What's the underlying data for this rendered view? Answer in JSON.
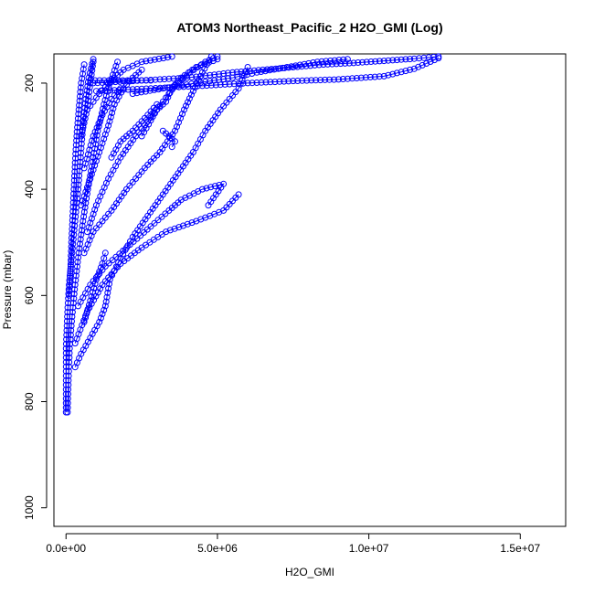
{
  "chart_data": {
    "type": "scatter",
    "title": "ATOM3 Northeast_Pacific_2 H2O_GMI (Log)",
    "xlabel": "H2O_GMI",
    "ylabel": "Pressure (mbar)",
    "xlim": [
      -400000,
      16500000
    ],
    "ylim": [
      1035,
      145
    ],
    "y_reversed": true,
    "xticks": [
      {
        "value": 0,
        "label": "0.0e+00"
      },
      {
        "value": 5000000,
        "label": "5.0e+06"
      },
      {
        "value": 10000000,
        "label": "1.0e+07"
      },
      {
        "value": 15000000,
        "label": "1.5e+07"
      }
    ],
    "yticks": [
      {
        "value": 200,
        "label": "200"
      },
      {
        "value": 400,
        "label": "400"
      },
      {
        "value": 600,
        "label": "600"
      },
      {
        "value": 800,
        "label": "800"
      },
      {
        "value": 1000,
        "label": "1000"
      }
    ],
    "colors": {
      "series": "#0000ff",
      "axis": "#000000"
    },
    "marker": "open-circle",
    "connected": true,
    "series": [
      {
        "values": [
          [
            0,
            820
          ],
          [
            0,
            760
          ],
          [
            0,
            700
          ],
          [
            40000,
            640
          ],
          [
            100000,
            580
          ],
          [
            200000,
            520
          ],
          [
            300000,
            460
          ],
          [
            400000,
            400
          ],
          [
            480000,
            340
          ],
          [
            560000,
            280
          ],
          [
            650000,
            230
          ],
          [
            750000,
            190
          ],
          [
            900000,
            155
          ]
        ]
      },
      {
        "values": [
          [
            50000,
            820
          ],
          [
            80000,
            760
          ],
          [
            120000,
            700
          ],
          [
            200000,
            640
          ],
          [
            300000,
            580
          ],
          [
            420000,
            520
          ],
          [
            560000,
            460
          ],
          [
            720000,
            400
          ],
          [
            900000,
            340
          ],
          [
            1050000,
            290
          ],
          [
            1250000,
            240
          ],
          [
            1450000,
            200
          ],
          [
            1700000,
            160
          ]
        ]
      },
      {
        "values": [
          [
            300000,
            735
          ],
          [
            500000,
            710
          ],
          [
            800000,
            680
          ],
          [
            1100000,
            650
          ],
          [
            1300000,
            620
          ],
          [
            1450000,
            570
          ],
          [
            1800000,
            530
          ],
          [
            2200000,
            490
          ],
          [
            2700000,
            450
          ],
          [
            3200000,
            410
          ],
          [
            3700000,
            370
          ],
          [
            4200000,
            330
          ],
          [
            4600000,
            290
          ],
          [
            5100000,
            250
          ],
          [
            5700000,
            210
          ],
          [
            6000000,
            170
          ]
        ]
      },
      {
        "values": [
          [
            300000,
            690
          ],
          [
            700000,
            630
          ],
          [
            1200000,
            580
          ],
          [
            1800000,
            540
          ],
          [
            2500000,
            510
          ],
          [
            3300000,
            480
          ],
          [
            4300000,
            460
          ],
          [
            5200000,
            440
          ],
          [
            5700000,
            410
          ]
        ]
      },
      {
        "values": [
          [
            400000,
            620
          ],
          [
            800000,
            580
          ],
          [
            1300000,
            545
          ],
          [
            2000000,
            510
          ],
          [
            2800000,
            470
          ],
          [
            3400000,
            440
          ],
          [
            3800000,
            420
          ],
          [
            4500000,
            400
          ],
          [
            5200000,
            390
          ],
          [
            4700000,
            430
          ]
        ]
      },
      {
        "values": [
          [
            600000,
            520
          ],
          [
            900000,
            480
          ],
          [
            1500000,
            440
          ],
          [
            2000000,
            400
          ],
          [
            2600000,
            360
          ],
          [
            3100000,
            330
          ],
          [
            3600000,
            290
          ],
          [
            3900000,
            250
          ],
          [
            4200000,
            215
          ],
          [
            4500000,
            180
          ],
          [
            4800000,
            150
          ]
        ]
      },
      {
        "values": [
          [
            700000,
            480
          ],
          [
            1000000,
            430
          ],
          [
            1400000,
            380
          ],
          [
            1800000,
            340
          ],
          [
            2300000,
            300
          ],
          [
            2800000,
            265
          ],
          [
            3200000,
            235
          ],
          [
            3600000,
            205
          ],
          [
            4100000,
            180
          ],
          [
            4600000,
            160
          ],
          [
            5000000,
            150
          ]
        ]
      },
      {
        "values": [
          [
            500000,
            430
          ],
          [
            800000,
            380
          ],
          [
            1100000,
            330
          ],
          [
            1400000,
            280
          ],
          [
            1600000,
            240
          ],
          [
            1900000,
            210
          ],
          [
            2200000,
            190
          ],
          [
            2500000,
            175
          ]
        ]
      },
      {
        "values": [
          [
            600000,
            360
          ],
          [
            900000,
            300
          ],
          [
            1200000,
            260
          ],
          [
            1500000,
            230
          ],
          [
            1800000,
            210
          ]
        ]
      },
      {
        "values": [
          [
            800000,
            195
          ],
          [
            2800000,
            195
          ]
        ]
      },
      {
        "values": [
          [
            900000,
            200
          ],
          [
            2500000,
            195
          ],
          [
            4000000,
            190
          ],
          [
            5500000,
            180
          ],
          [
            6500000,
            175
          ],
          [
            7500000,
            170
          ],
          [
            8500000,
            165
          ],
          [
            9500000,
            162
          ],
          [
            10500000,
            158
          ],
          [
            11500000,
            154
          ],
          [
            12300000,
            150
          ]
        ]
      },
      {
        "values": [
          [
            1000000,
            215
          ],
          [
            2800000,
            210
          ],
          [
            4500000,
            205
          ],
          [
            6000000,
            200
          ],
          [
            7500000,
            196
          ],
          [
            9000000,
            193
          ],
          [
            10500000,
            187
          ],
          [
            11500000,
            173
          ],
          [
            12300000,
            153
          ]
        ]
      },
      {
        "values": [
          [
            2500000,
            300
          ],
          [
            2800000,
            270
          ],
          [
            3000000,
            250
          ],
          [
            3300000,
            235
          ],
          [
            3500000,
            210
          ],
          [
            3800000,
            190
          ],
          [
            4300000,
            170
          ],
          [
            5000000,
            155
          ]
        ]
      },
      {
        "values": [
          [
            3500000,
            320
          ],
          [
            3600000,
            310
          ],
          [
            3400000,
            300
          ],
          [
            3200000,
            290
          ]
        ]
      },
      {
        "values": [
          [
            700000,
            250
          ],
          [
            1100000,
            220
          ],
          [
            1500000,
            195
          ],
          [
            1900000,
            175
          ],
          [
            2500000,
            160
          ],
          [
            3500000,
            150
          ]
        ]
      },
      {
        "values": [
          [
            2200000,
            220
          ],
          [
            3200000,
            210
          ],
          [
            4300000,
            200
          ],
          [
            5500000,
            190
          ],
          [
            6300000,
            180
          ],
          [
            7300000,
            170
          ],
          [
            8300000,
            160
          ],
          [
            9300000,
            155
          ]
        ]
      },
      {
        "values": [
          [
            600000,
            650
          ],
          [
            800000,
            610
          ],
          [
            1000000,
            570
          ],
          [
            1200000,
            540
          ],
          [
            1300000,
            520
          ]
        ]
      },
      {
        "values": [
          [
            1500000,
            340
          ],
          [
            1800000,
            310
          ],
          [
            2200000,
            290
          ],
          [
            2700000,
            260
          ],
          [
            3000000,
            240
          ]
        ]
      },
      {
        "values": [
          [
            500000,
            300
          ],
          [
            700000,
            250
          ],
          [
            800000,
            200
          ],
          [
            900000,
            160
          ]
        ]
      },
      {
        "values": [
          [
            100000,
            600
          ],
          [
            150000,
            550
          ],
          [
            180000,
            500
          ],
          [
            220000,
            450
          ],
          [
            260000,
            400
          ],
          [
            300000,
            350
          ],
          [
            350000,
            300
          ],
          [
            420000,
            250
          ],
          [
            500000,
            200
          ],
          [
            600000,
            165
          ]
        ]
      }
    ]
  }
}
